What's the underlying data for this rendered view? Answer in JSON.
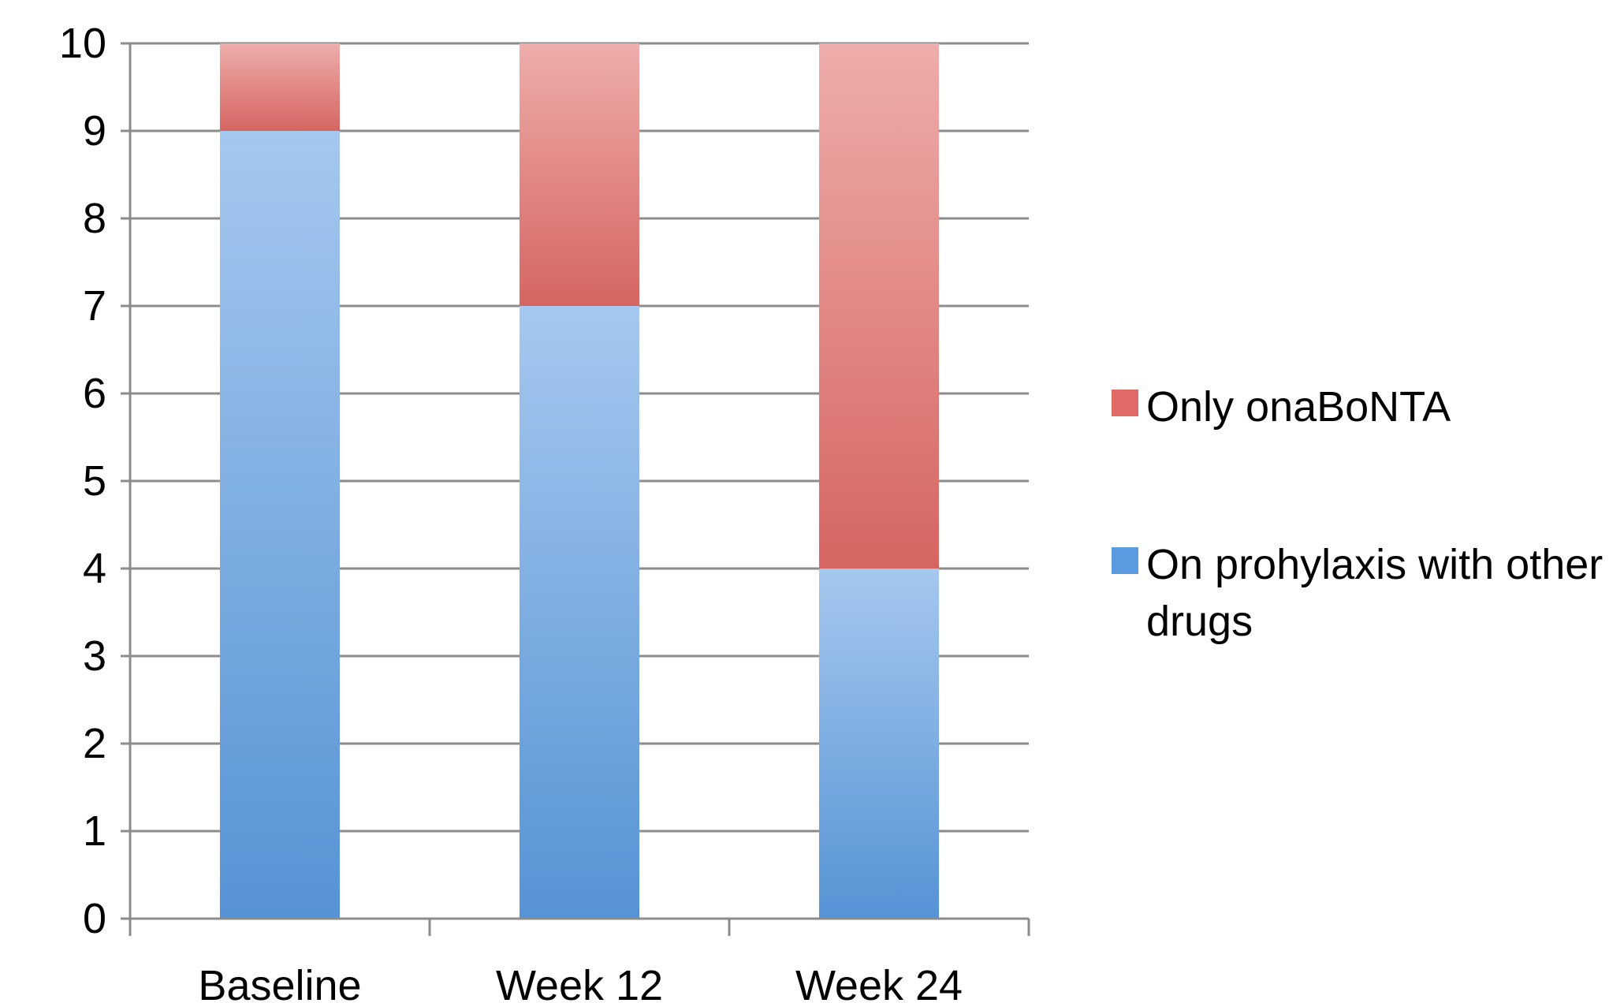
{
  "chart_data": {
    "type": "bar",
    "stacked": true,
    "categories": [
      "Baseline",
      "Week 12",
      "Week 24"
    ],
    "series": [
      {
        "name": "On prohylaxis with other drugs",
        "values": [
          9,
          7,
          4
        ],
        "color": "#5b9be0"
      },
      {
        "name": "Only onaBoNTA",
        "values": [
          1,
          3,
          6
        ],
        "color": "#e06a66"
      }
    ],
    "title": "",
    "xlabel": "",
    "ylabel": "",
    "ylim": [
      0,
      10
    ],
    "yticks": [
      0,
      1,
      2,
      3,
      4,
      5,
      6,
      7,
      8,
      9,
      10
    ],
    "grid": true,
    "legend_position": "right"
  },
  "legend": {
    "items": [
      {
        "label": "Only onaBoNTA",
        "color": "#e06a66"
      },
      {
        "label": "On prohylaxis with other drugs",
        "color": "#5b9be0"
      }
    ]
  }
}
